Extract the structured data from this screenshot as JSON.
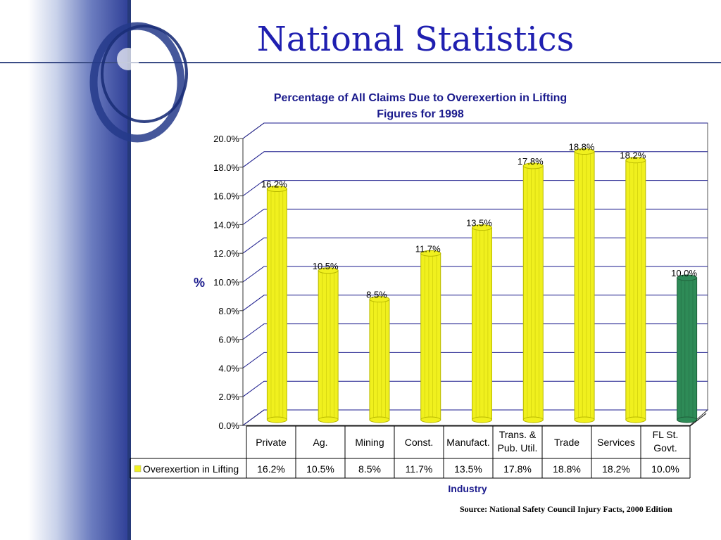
{
  "slide": {
    "title": "National Statistics",
    "source": "Source: National Safety Council Injury Facts,  2000 Edition"
  },
  "chart_data": {
    "type": "bar",
    "title": "Percentage of All Claims Due to Overexertion in Lifting",
    "subtitle": "Figures for 1998",
    "xlabel": "Industry",
    "ylabel": "%",
    "ylim": [
      0,
      20
    ],
    "yticks": [
      "0.0%",
      "2.0%",
      "4.0%",
      "6.0%",
      "8.0%",
      "10.0%",
      "12.0%",
      "14.0%",
      "16.0%",
      "18.0%",
      "20.0%"
    ],
    "categories": [
      [
        "Private"
      ],
      [
        "Ag."
      ],
      [
        "Mining"
      ],
      [
        "Const."
      ],
      [
        "Manufact."
      ],
      [
        "Trans. &",
        "Pub. Util."
      ],
      [
        "Trade"
      ],
      [
        "Services"
      ],
      [
        "FL St.",
        "Govt."
      ]
    ],
    "series": [
      {
        "name": "Overexertion in Lifting",
        "values": [
          16.2,
          10.5,
          8.5,
          11.7,
          13.5,
          17.8,
          18.8,
          18.2,
          10.0
        ],
        "labels": [
          "16.2%",
          "10.5%",
          "8.5%",
          "11.7%",
          "13.5%",
          "17.8%",
          "18.8%",
          "18.2%",
          "10.0%"
        ]
      }
    ],
    "colors": {
      "bar": "#f0f01e",
      "bar_dark": "#b8b800",
      "highlight_bar": "#2e8b57",
      "highlight_dark": "#1f5f3a",
      "gridline": "#1a1a8c",
      "title": "#1a1a8c",
      "axis_title": "#1a1a8c"
    },
    "highlight_index": 8,
    "grid": true,
    "legend": "data-table"
  }
}
